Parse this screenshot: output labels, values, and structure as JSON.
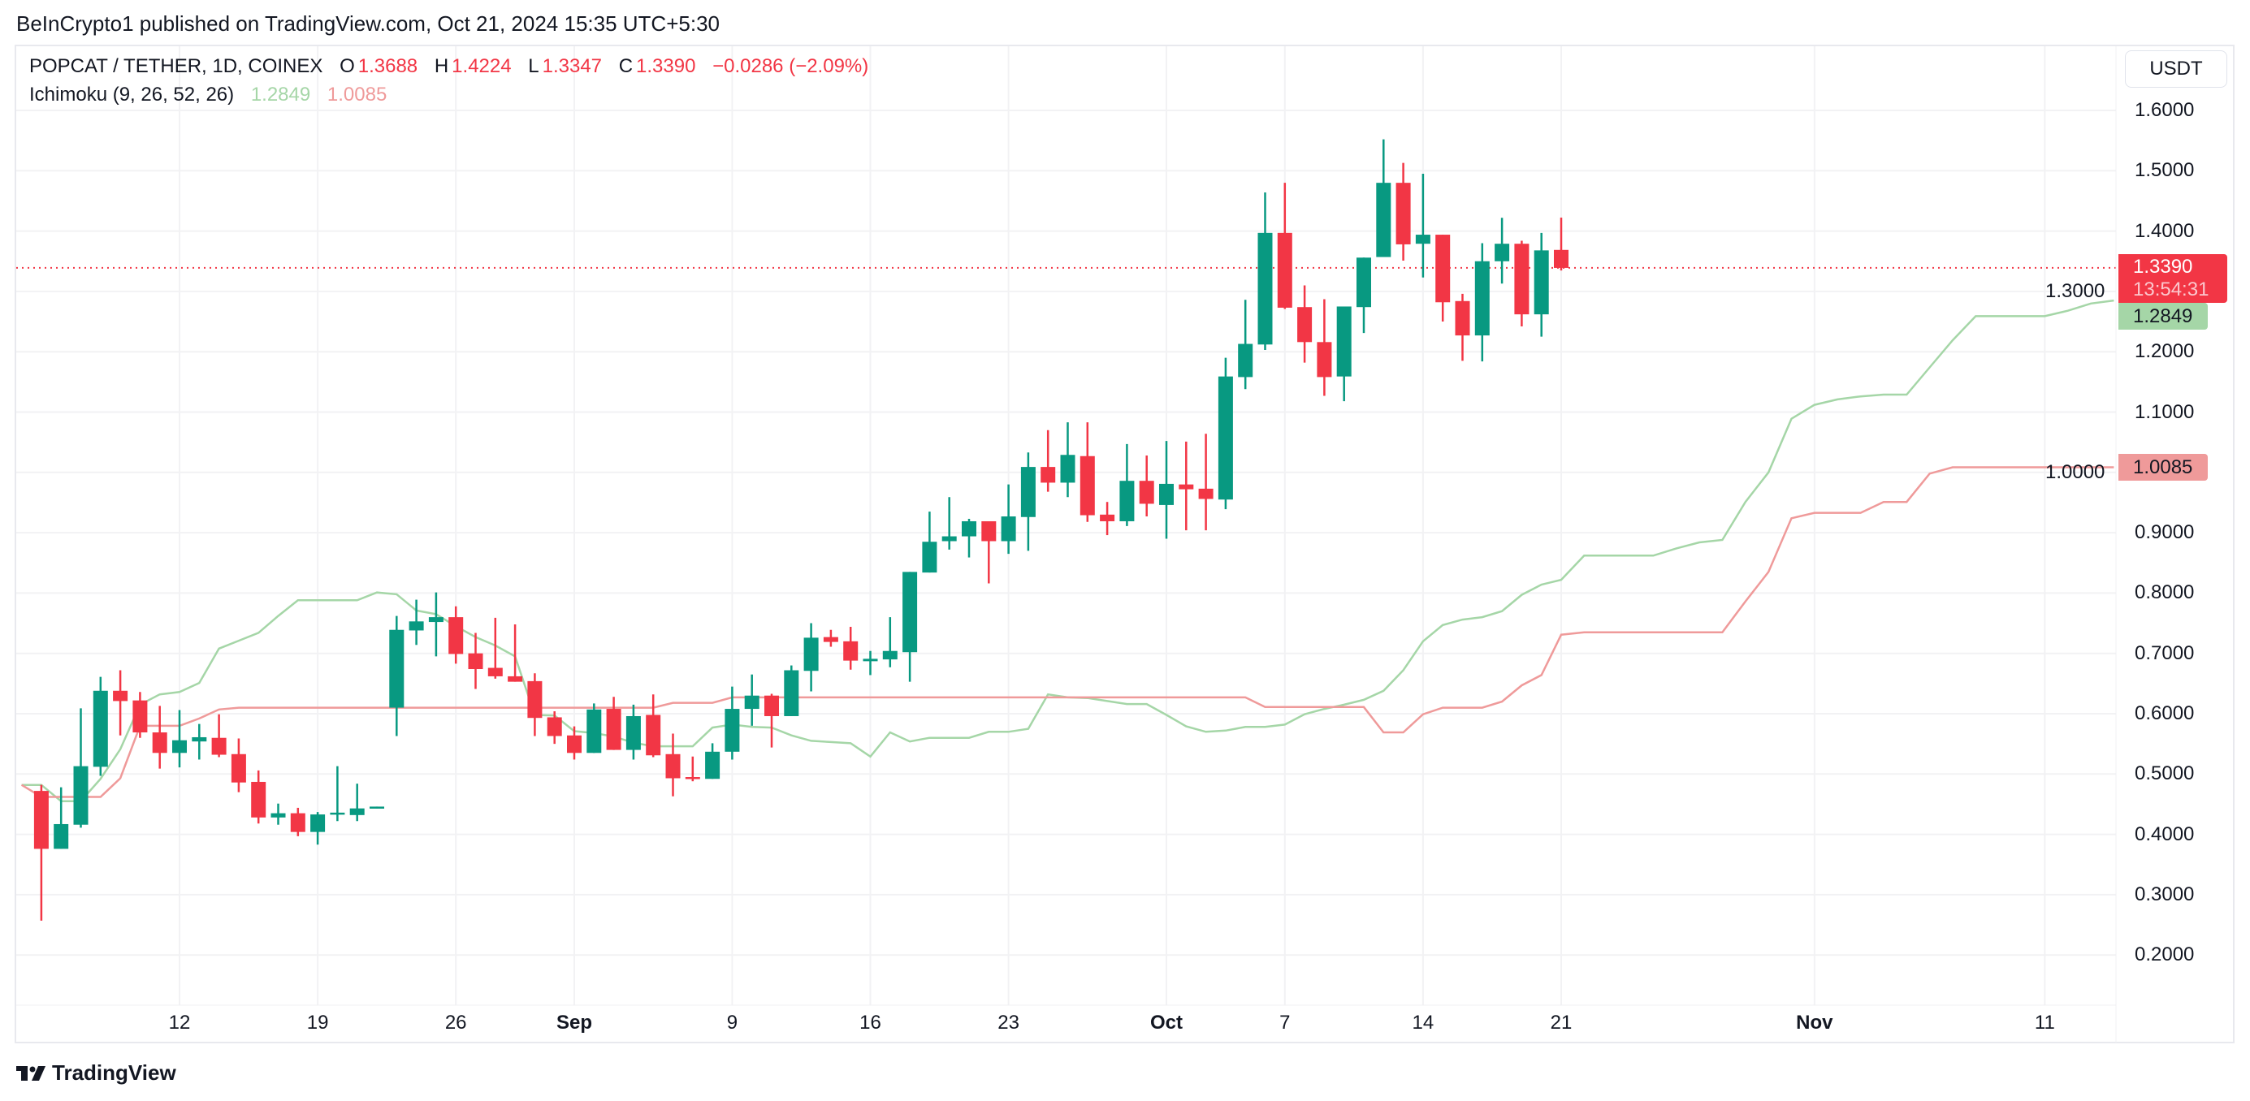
{
  "published": "BeInCrypto1 published on TradingView.com, Oct 21, 2024 15:35 UTC+5:30",
  "legend": {
    "symbol": "POPCAT / TETHER, 1D, COINEX",
    "o_label": "O",
    "o": "1.3688",
    "h_label": "H",
    "h": "1.4224",
    "l_label": "L",
    "l": "1.3347",
    "c_label": "C",
    "c": "1.3390",
    "change": "−0.0286 (−2.09%)",
    "indicator": "Ichimoku (9, 26, 52, 26)",
    "ind_a": "1.2849",
    "ind_b": "1.0085"
  },
  "price_axis": {
    "currency": "USDT",
    "ticks": [
      "1.6000",
      "1.5000",
      "1.4000",
      "1.3000",
      "1.2000",
      "1.1000",
      "1.0000",
      "0.9000",
      "0.8000",
      "0.7000",
      "0.6000",
      "0.5000",
      "0.4000",
      "0.3000",
      "0.2000"
    ],
    "last_price": "1.3390",
    "countdown": "13:54:31",
    "span_a_value": "1.2849",
    "span_b_value": "1.0085"
  },
  "logo_text": "TradingView",
  "chart_data": {
    "type": "candlestick",
    "title": "POPCAT / TETHER, 1D, COINEX",
    "ylim": [
      0.15,
      1.65
    ],
    "grid": true,
    "colors": {
      "up": "#089981",
      "down": "#F23645",
      "span_a": "#A5D6A7",
      "span_b": "#EF9A9A",
      "last_price_line": "#F23645"
    },
    "x_ticks": [
      {
        "label": "12",
        "date": "2024-08-12"
      },
      {
        "label": "19",
        "date": "2024-08-19"
      },
      {
        "label": "26",
        "date": "2024-08-26"
      },
      {
        "label": "Sep",
        "date": "2024-09-01",
        "bold": true
      },
      {
        "label": "9",
        "date": "2024-09-09"
      },
      {
        "label": "16",
        "date": "2024-09-16"
      },
      {
        "label": "23",
        "date": "2024-09-23"
      },
      {
        "label": "Oct",
        "date": "2024-10-01",
        "bold": true
      },
      {
        "label": "7",
        "date": "2024-10-07"
      },
      {
        "label": "14",
        "date": "2024-10-14"
      },
      {
        "label": "21",
        "date": "2024-10-21"
      },
      {
        "label": "Nov",
        "date": "2024-11-01",
        "bold": true
      },
      {
        "label": "11",
        "date": "2024-11-11"
      }
    ],
    "last_price": 1.339,
    "candles_fields": [
      "date",
      "open",
      "high",
      "low",
      "close"
    ],
    "candles": [
      [
        "2024-08-05",
        0.472,
        0.482,
        0.257,
        0.376
      ],
      [
        "2024-08-06",
        0.376,
        0.478,
        0.376,
        0.417
      ],
      [
        "2024-08-07",
        0.416,
        0.609,
        0.411,
        0.513
      ],
      [
        "2024-08-08",
        0.512,
        0.661,
        0.497,
        0.638
      ],
      [
        "2024-08-09",
        0.638,
        0.672,
        0.564,
        0.621
      ],
      [
        "2024-08-10",
        0.622,
        0.636,
        0.56,
        0.569
      ],
      [
        "2024-08-11",
        0.569,
        0.613,
        0.509,
        0.535
      ],
      [
        "2024-08-12",
        0.535,
        0.606,
        0.511,
        0.556
      ],
      [
        "2024-08-13",
        0.554,
        0.583,
        0.524,
        0.561
      ],
      [
        "2024-08-14",
        0.56,
        0.599,
        0.528,
        0.532
      ],
      [
        "2024-08-15",
        0.533,
        0.559,
        0.47,
        0.486
      ],
      [
        "2024-08-16",
        0.487,
        0.506,
        0.418,
        0.428
      ],
      [
        "2024-08-17",
        0.428,
        0.451,
        0.416,
        0.435
      ],
      [
        "2024-08-18",
        0.435,
        0.444,
        0.397,
        0.404
      ],
      [
        "2024-08-19",
        0.404,
        0.437,
        0.383,
        0.433
      ],
      [
        "2024-08-20",
        0.434,
        0.513,
        0.422,
        0.436
      ],
      [
        "2024-08-21",
        0.432,
        0.484,
        0.422,
        0.443
      ],
      [
        "2024-08-22",
        0.444,
        0.446,
        0.443,
        0.446
      ],
      [
        "2024-08-23",
        0.61,
        0.762,
        0.563,
        0.739
      ],
      [
        "2024-08-24",
        0.738,
        0.789,
        0.714,
        0.753
      ],
      [
        "2024-08-25",
        0.752,
        0.801,
        0.695,
        0.76
      ],
      [
        "2024-08-26",
        0.76,
        0.778,
        0.683,
        0.699
      ],
      [
        "2024-08-27",
        0.7,
        0.734,
        0.641,
        0.674
      ],
      [
        "2024-08-28",
        0.676,
        0.759,
        0.658,
        0.662
      ],
      [
        "2024-08-29",
        0.662,
        0.748,
        0.653,
        0.653
      ],
      [
        "2024-08-30",
        0.654,
        0.667,
        0.563,
        0.593
      ],
      [
        "2024-08-31",
        0.594,
        0.604,
        0.55,
        0.563
      ],
      [
        "2024-09-01",
        0.564,
        0.579,
        0.524,
        0.535
      ],
      [
        "2024-09-02",
        0.535,
        0.617,
        0.535,
        0.607
      ],
      [
        "2024-09-03",
        0.608,
        0.628,
        0.54,
        0.54
      ],
      [
        "2024-09-04",
        0.54,
        0.615,
        0.524,
        0.596
      ],
      [
        "2024-09-05",
        0.598,
        0.632,
        0.528,
        0.531
      ],
      [
        "2024-09-06",
        0.533,
        0.567,
        0.463,
        0.493
      ],
      [
        "2024-09-07",
        0.495,
        0.529,
        0.488,
        0.492
      ],
      [
        "2024-09-08",
        0.492,
        0.551,
        0.492,
        0.537
      ],
      [
        "2024-09-09",
        0.537,
        0.645,
        0.524,
        0.608
      ],
      [
        "2024-09-10",
        0.608,
        0.665,
        0.58,
        0.63
      ],
      [
        "2024-09-11",
        0.63,
        0.633,
        0.544,
        0.596
      ],
      [
        "2024-09-12",
        0.596,
        0.68,
        0.596,
        0.672
      ],
      [
        "2024-09-13",
        0.671,
        0.75,
        0.637,
        0.726
      ],
      [
        "2024-09-14",
        0.727,
        0.739,
        0.711,
        0.719
      ],
      [
        "2024-09-15",
        0.72,
        0.744,
        0.673,
        0.688
      ],
      [
        "2024-09-16",
        0.687,
        0.704,
        0.664,
        0.691
      ],
      [
        "2024-09-17",
        0.69,
        0.76,
        0.677,
        0.704
      ],
      [
        "2024-09-18",
        0.702,
        0.835,
        0.653,
        0.835
      ],
      [
        "2024-09-19",
        0.834,
        0.935,
        0.834,
        0.885
      ],
      [
        "2024-09-20",
        0.886,
        0.959,
        0.872,
        0.894
      ],
      [
        "2024-09-21",
        0.894,
        0.923,
        0.859,
        0.919
      ],
      [
        "2024-09-22",
        0.919,
        0.919,
        0.816,
        0.886
      ],
      [
        "2024-09-23",
        0.886,
        0.98,
        0.865,
        0.927
      ],
      [
        "2024-09-24",
        0.926,
        1.033,
        0.87,
        1.009
      ],
      [
        "2024-09-25",
        1.009,
        1.07,
        0.968,
        0.983
      ],
      [
        "2024-09-26",
        0.983,
        1.083,
        0.959,
        1.029
      ],
      [
        "2024-09-27",
        1.027,
        1.083,
        0.918,
        0.929
      ],
      [
        "2024-09-28",
        0.93,
        0.951,
        0.896,
        0.919
      ],
      [
        "2024-09-29",
        0.919,
        1.047,
        0.911,
        0.986
      ],
      [
        "2024-09-30",
        0.986,
        1.028,
        0.927,
        0.948
      ],
      [
        "2024-10-01",
        0.946,
        1.052,
        0.89,
        0.981
      ],
      [
        "2024-10-02",
        0.98,
        1.051,
        0.904,
        0.972
      ],
      [
        "2024-10-03",
        0.973,
        1.064,
        0.904,
        0.956
      ],
      [
        "2024-10-04",
        0.955,
        1.19,
        0.939,
        1.159
      ],
      [
        "2024-10-05",
        1.158,
        1.286,
        1.138,
        1.213
      ],
      [
        "2024-10-06",
        1.212,
        1.464,
        1.203,
        1.397
      ],
      [
        "2024-10-07",
        1.397,
        1.48,
        1.271,
        1.273
      ],
      [
        "2024-10-08",
        1.274,
        1.31,
        1.182,
        1.216
      ],
      [
        "2024-10-09",
        1.216,
        1.287,
        1.127,
        1.158
      ],
      [
        "2024-10-10",
        1.159,
        1.275,
        1.118,
        1.275
      ],
      [
        "2024-10-11",
        1.274,
        1.356,
        1.231,
        1.356
      ],
      [
        "2024-10-12",
        1.357,
        1.552,
        1.357,
        1.48
      ],
      [
        "2024-10-13",
        1.48,
        1.513,
        1.351,
        1.378
      ],
      [
        "2024-10-14",
        1.379,
        1.495,
        1.323,
        1.394
      ],
      [
        "2024-10-15",
        1.394,
        1.394,
        1.25,
        1.282
      ],
      [
        "2024-10-16",
        1.284,
        1.296,
        1.185,
        1.227
      ],
      [
        "2024-10-17",
        1.227,
        1.38,
        1.184,
        1.35
      ],
      [
        "2024-10-18",
        1.35,
        1.422,
        1.313,
        1.379
      ],
      [
        "2024-10-19",
        1.379,
        1.384,
        1.242,
        1.262
      ],
      [
        "2024-10-20",
        1.262,
        1.397,
        1.225,
        1.368
      ],
      [
        "2024-10-21",
        1.3688,
        1.4224,
        1.3347,
        1.339
      ]
    ],
    "series": [
      {
        "name": "1.2849",
        "key": "span_a",
        "points": [
          [
            "2024-08-04",
            0.482
          ],
          [
            "2024-08-05",
            0.482
          ],
          [
            "2024-08-06",
            0.455
          ],
          [
            "2024-08-07",
            0.455
          ],
          [
            "2024-08-08",
            0.492
          ],
          [
            "2024-08-09",
            0.541
          ],
          [
            "2024-08-10",
            0.615
          ],
          [
            "2024-08-11",
            0.632
          ],
          [
            "2024-08-12",
            0.636
          ],
          [
            "2024-08-13",
            0.651
          ],
          [
            "2024-08-14",
            0.708
          ],
          [
            "2024-08-15",
            0.721
          ],
          [
            "2024-08-16",
            0.734
          ],
          [
            "2024-08-17",
            0.762
          ],
          [
            "2024-08-18",
            0.788
          ],
          [
            "2024-08-21",
            0.788
          ],
          [
            "2024-08-22",
            0.801
          ],
          [
            "2024-08-23",
            0.798
          ],
          [
            "2024-08-24",
            0.771
          ],
          [
            "2024-08-25",
            0.765
          ],
          [
            "2024-08-26",
            0.745
          ],
          [
            "2024-08-27",
            0.727
          ],
          [
            "2024-08-28",
            0.713
          ],
          [
            "2024-08-29",
            0.695
          ],
          [
            "2024-08-30",
            0.598
          ],
          [
            "2024-08-31",
            0.597
          ],
          [
            "2024-09-01",
            0.571
          ],
          [
            "2024-09-02",
            0.568
          ],
          [
            "2024-09-03",
            0.562
          ],
          [
            "2024-09-04",
            0.552
          ],
          [
            "2024-09-05",
            0.546
          ],
          [
            "2024-09-07",
            0.546
          ],
          [
            "2024-09-08",
            0.577
          ],
          [
            "2024-09-09",
            0.582
          ],
          [
            "2024-09-10",
            0.578
          ],
          [
            "2024-09-11",
            0.577
          ],
          [
            "2024-09-12",
            0.564
          ],
          [
            "2024-09-13",
            0.555
          ],
          [
            "2024-09-14",
            0.553
          ],
          [
            "2024-09-15",
            0.551
          ],
          [
            "2024-09-16",
            0.529
          ],
          [
            "2024-09-17",
            0.569
          ],
          [
            "2024-09-18",
            0.554
          ],
          [
            "2024-09-19",
            0.56
          ],
          [
            "2024-09-21",
            0.56
          ],
          [
            "2024-09-22",
            0.57
          ],
          [
            "2024-09-23",
            0.57
          ],
          [
            "2024-09-24",
            0.575
          ],
          [
            "2024-09-25",
            0.632
          ],
          [
            "2024-09-26",
            0.627
          ],
          [
            "2024-09-27",
            0.626
          ],
          [
            "2024-09-28",
            0.621
          ],
          [
            "2024-09-29",
            0.616
          ],
          [
            "2024-09-30",
            0.616
          ],
          [
            "2024-10-01",
            0.598
          ],
          [
            "2024-10-02",
            0.579
          ],
          [
            "2024-10-03",
            0.57
          ],
          [
            "2024-10-04",
            0.572
          ],
          [
            "2024-10-05",
            0.578
          ],
          [
            "2024-10-06",
            0.578
          ],
          [
            "2024-10-07",
            0.582
          ],
          [
            "2024-10-08",
            0.599
          ],
          [
            "2024-10-09",
            0.608
          ],
          [
            "2024-10-10",
            0.615
          ],
          [
            "2024-10-11",
            0.623
          ],
          [
            "2024-10-12",
            0.638
          ],
          [
            "2024-10-13",
            0.672
          ],
          [
            "2024-10-14",
            0.72
          ],
          [
            "2024-10-15",
            0.747
          ],
          [
            "2024-10-16",
            0.756
          ],
          [
            "2024-10-17",
            0.76
          ],
          [
            "2024-10-18",
            0.77
          ],
          [
            "2024-10-19",
            0.797
          ],
          [
            "2024-10-20",
            0.814
          ],
          [
            "2024-10-21",
            0.822
          ],
          [
            "2024-10-22",
            0.862
          ],
          [
            "2024-10-25",
            0.862
          ],
          [
            "2024-10-26",
            0.874
          ],
          [
            "2024-10-27",
            0.884
          ],
          [
            "2024-10-28",
            0.888
          ],
          [
            "2024-10-29",
            0.951
          ],
          [
            "2024-10-30",
            1.0
          ],
          [
            "2024-10-31",
            1.089
          ],
          [
            "2024-11-01",
            1.112
          ],
          [
            "2024-11-02",
            1.121
          ],
          [
            "2024-11-03",
            1.126
          ],
          [
            "2024-11-04",
            1.129
          ],
          [
            "2024-11-05",
            1.129
          ],
          [
            "2024-11-06",
            1.174
          ],
          [
            "2024-11-07",
            1.219
          ],
          [
            "2024-11-08",
            1.259
          ],
          [
            "2024-11-11",
            1.259
          ],
          [
            "2024-11-12",
            1.268
          ],
          [
            "2024-11-13",
            1.28
          ],
          [
            "2024-11-14",
            1.2849
          ]
        ]
      },
      {
        "name": "1.0085",
        "key": "span_b",
        "points": [
          [
            "2024-08-04",
            0.482
          ],
          [
            "2024-08-05",
            0.462
          ],
          [
            "2024-08-08",
            0.462
          ],
          [
            "2024-08-09",
            0.493
          ],
          [
            "2024-08-10",
            0.58
          ],
          [
            "2024-08-12",
            0.58
          ],
          [
            "2024-08-13",
            0.592
          ],
          [
            "2024-08-14",
            0.607
          ],
          [
            "2024-08-15",
            0.61
          ],
          [
            "2024-09-05",
            0.61
          ],
          [
            "2024-09-06",
            0.618
          ],
          [
            "2024-09-08",
            0.618
          ],
          [
            "2024-09-09",
            0.627
          ],
          [
            "2024-10-05",
            0.627
          ],
          [
            "2024-10-06",
            0.611
          ],
          [
            "2024-10-11",
            0.611
          ],
          [
            "2024-10-12",
            0.569
          ],
          [
            "2024-10-13",
            0.569
          ],
          [
            "2024-10-14",
            0.599
          ],
          [
            "2024-10-15",
            0.61
          ],
          [
            "2024-10-17",
            0.61
          ],
          [
            "2024-10-18",
            0.62
          ],
          [
            "2024-10-19",
            0.647
          ],
          [
            "2024-10-20",
            0.664
          ],
          [
            "2024-10-21",
            0.731
          ],
          [
            "2024-10-22",
            0.735
          ],
          [
            "2024-10-28",
            0.735
          ],
          [
            "2024-10-29",
            0.786
          ],
          [
            "2024-10-30",
            0.835
          ],
          [
            "2024-10-31",
            0.924
          ],
          [
            "2024-11-01",
            0.933
          ],
          [
            "2024-11-03",
            0.933
          ],
          [
            "2024-11-04",
            0.951
          ],
          [
            "2024-11-05",
            0.951
          ],
          [
            "2024-11-06",
            0.998
          ],
          [
            "2024-11-07",
            1.0085
          ],
          [
            "2024-11-14",
            1.0085
          ]
        ]
      }
    ]
  }
}
